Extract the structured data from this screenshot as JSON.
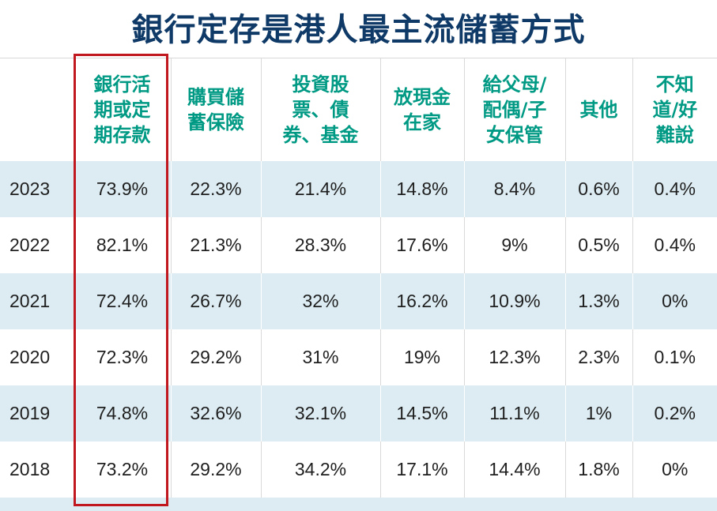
{
  "title": "銀行定存是港人最主流儲蓄方式",
  "chart_data": {
    "type": "table",
    "columns": [
      "",
      "銀行活\n期或定\n期存款",
      "購買儲\n蓄保險",
      "投資股\n票、債\n券、基金",
      "放現金\n在家",
      "給父母/\n配偶/子\n女保管",
      "其他",
      "不知\n道/好\n難說"
    ],
    "rows": [
      [
        "2023",
        "73.9%",
        "22.3%",
        "21.4%",
        "14.8%",
        "8.4%",
        "0.6%",
        "0.4%"
      ],
      [
        "2022",
        "82.1%",
        "21.3%",
        "28.3%",
        "17.6%",
        "9%",
        "0.5%",
        "0.4%"
      ],
      [
        "2021",
        "72.4%",
        "26.7%",
        "32%",
        "16.2%",
        "10.9%",
        "1.3%",
        "0%"
      ],
      [
        "2020",
        "72.3%",
        "29.2%",
        "31%",
        "19%",
        "12.3%",
        "2.3%",
        "0.1%"
      ],
      [
        "2019",
        "74.8%",
        "32.6%",
        "32.1%",
        "14.5%",
        "11.1%",
        "1%",
        "0.2%"
      ],
      [
        "2018",
        "73.2%",
        "29.2%",
        "34.2%",
        "17.1%",
        "14.4%",
        "1.8%",
        "0%"
      ]
    ],
    "highlighted_column": 1
  },
  "colors": {
    "title": "#0f3a67",
    "header_text": "#009a84",
    "row_shade": "#dcecf2",
    "highlight_border": "#c0181e"
  }
}
